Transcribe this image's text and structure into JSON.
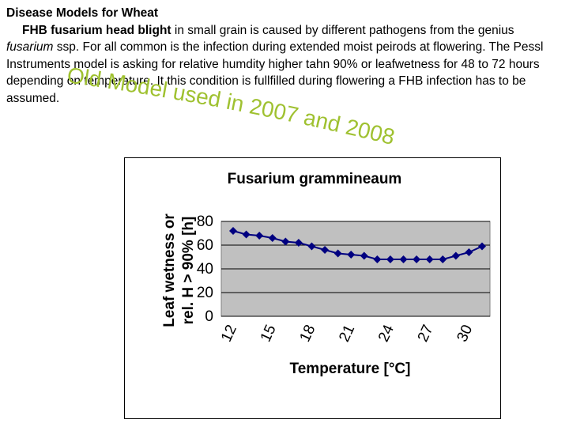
{
  "slide": {
    "heading": "Disease Models for Wheat",
    "fhb_title": "FHB fusarium head blight",
    "p_text_1": " in small grain is caused by different pathogens from the genius ",
    "p_italic": "fusarium",
    "p_text_2": " ssp. For all common is the infection during extended moist peirods at flowering. The Pessl Instruments model is asking for relative humdity higher tahn 90% or leafwetness for 48 to 72 hours depending on temperature. It this condition is fullfilled during flowering a FHB infection has to be assumed.",
    "overlay_text": "Old Model used in 2007 and 2008",
    "overlay_color": "#9fc130"
  },
  "chart_data": {
    "type": "line",
    "title": "Fusarium grammineaum",
    "xlabel": "Temperature [°C]",
    "ylabel": "Leaf wetness or rel. H > 90% [h]",
    "x": [
      12,
      13,
      14,
      15,
      16,
      17,
      18,
      19,
      20,
      21,
      22,
      23,
      24,
      25,
      26,
      27,
      28,
      29,
      30,
      31
    ],
    "x_ticks": [
      "12",
      "15",
      "18",
      "21",
      "24",
      "27",
      "30"
    ],
    "y_ticks": [
      "0",
      "20",
      "40",
      "60",
      "80"
    ],
    "ylim": [
      0,
      80
    ],
    "grid": true,
    "legend": "none",
    "series": [
      {
        "name": "Fusarium grammineaum",
        "color": "#000080",
        "values": [
          72,
          69,
          68,
          66,
          63,
          62,
          59,
          56,
          53,
          52,
          51,
          48,
          48,
          48,
          48,
          48,
          48,
          51,
          54,
          59
        ]
      }
    ]
  }
}
